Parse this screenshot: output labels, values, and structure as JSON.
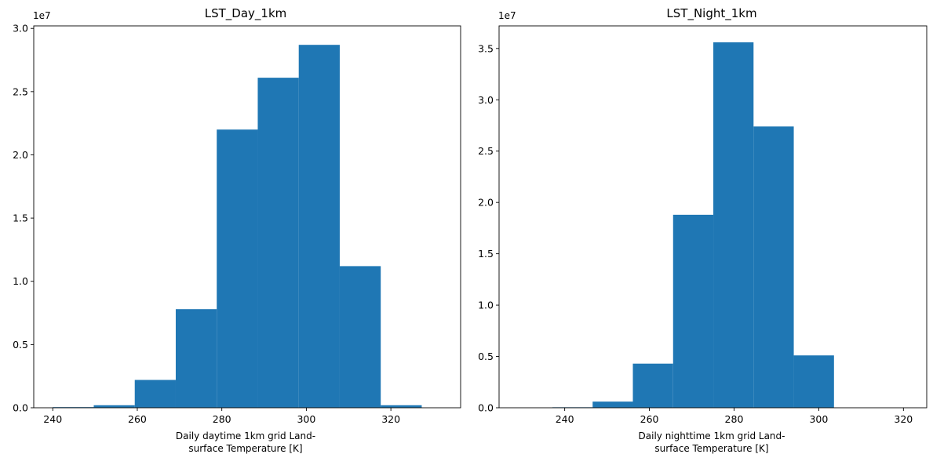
{
  "chart_data": [
    {
      "type": "bar",
      "title": "LST_Day_1km",
      "xlabel_lines": [
        "Daily daytime 1km grid Land-",
        "surface Temperature [K]"
      ],
      "ylabel": "",
      "offset_label": "1e7",
      "xlim": [
        235.5,
        336.5
      ],
      "ylim": [
        0,
        3.02
      ],
      "y_scale_note": "values in units of 1e7",
      "xticks": [
        "240",
        "260",
        "280",
        "300",
        "320"
      ],
      "yticks": [
        "0.0",
        "0.5",
        "1.0",
        "1.5",
        "2.0",
        "2.5",
        "3.0"
      ],
      "bins": [
        {
          "x0": 240.0,
          "x1": 249.7,
          "value": 0.005
        },
        {
          "x0": 249.7,
          "x1": 259.4,
          "value": 0.02
        },
        {
          "x0": 259.4,
          "x1": 269.1,
          "value": 0.22
        },
        {
          "x0": 269.1,
          "x1": 278.8,
          "value": 0.78
        },
        {
          "x0": 278.8,
          "x1": 288.5,
          "value": 2.2
        },
        {
          "x0": 288.5,
          "x1": 298.2,
          "value": 2.61
        },
        {
          "x0": 298.2,
          "x1": 307.9,
          "value": 2.87
        },
        {
          "x0": 307.9,
          "x1": 317.6,
          "value": 1.12
        },
        {
          "x0": 317.6,
          "x1": 327.3,
          "value": 0.02
        },
        {
          "x0": 327.3,
          "x1": 337.0,
          "value": 0.0
        }
      ],
      "color": "#1f77b4"
    },
    {
      "type": "bar",
      "title": "LST_Night_1km",
      "xlabel_lines": [
        "Daily nighttime 1km grid Land-",
        "surface Temperature [K]"
      ],
      "ylabel": "",
      "offset_label": "1e7",
      "xlim": [
        224.5,
        325.5
      ],
      "ylim": [
        0,
        3.72
      ],
      "y_scale_note": "values in units of 1e7",
      "xticks": [
        "240",
        "260",
        "280",
        "300",
        "320"
      ],
      "yticks": [
        "0.0",
        "0.5",
        "1.0",
        "1.5",
        "2.0",
        "2.5",
        "3.0",
        "3.5"
      ],
      "bins": [
        {
          "x0": 227.6,
          "x1": 237.1,
          "value": 0.0
        },
        {
          "x0": 237.1,
          "x1": 246.6,
          "value": 0.005
        },
        {
          "x0": 246.6,
          "x1": 256.1,
          "value": 0.06
        },
        {
          "x0": 256.1,
          "x1": 265.6,
          "value": 0.43
        },
        {
          "x0": 265.6,
          "x1": 275.1,
          "value": 1.88
        },
        {
          "x0": 275.1,
          "x1": 284.6,
          "value": 3.56
        },
        {
          "x0": 284.6,
          "x1": 294.1,
          "value": 2.74
        },
        {
          "x0": 294.1,
          "x1": 303.6,
          "value": 0.51
        },
        {
          "x0": 303.6,
          "x1": 313.1,
          "value": 0.0
        },
        {
          "x0": 313.1,
          "x1": 322.6,
          "value": 0.0
        }
      ],
      "color": "#1f77b4"
    }
  ]
}
